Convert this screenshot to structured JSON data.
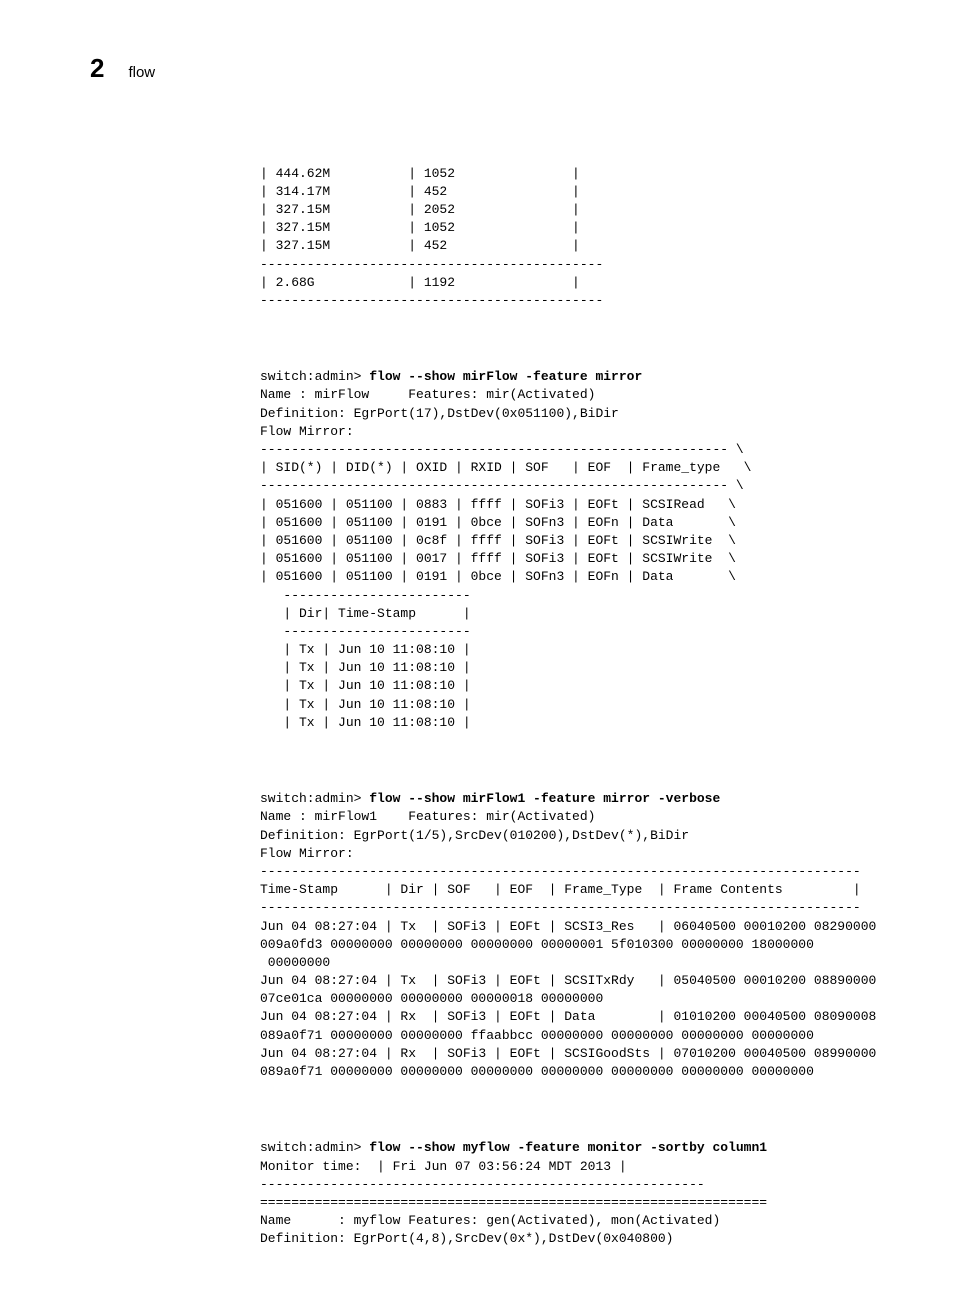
{
  "header": {
    "page_number": "2",
    "title": "flow"
  },
  "block1": {
    "lines": [
      "| 444.62M          | 1052               |",
      "| 314.17M          | 452                |",
      "| 327.15M          | 2052               |",
      "| 327.15M          | 1052               |",
      "| 327.15M          | 452                |",
      "--------------------------------------------",
      "| 2.68G            | 1192               |",
      "--------------------------------------------"
    ]
  },
  "block2": {
    "prompt": "switch:admin> ",
    "cmd": "flow --show mirFlow -feature mirror",
    "lines": [
      "Name : mirFlow     Features: mir(Activated)",
      "Definition: EgrPort(17),DstDev(0x051100),BiDir",
      "Flow Mirror:",
      "------------------------------------------------------------ \\",
      "| SID(*) | DID(*) | OXID | RXID | SOF   | EOF  | Frame_type   \\",
      "------------------------------------------------------------ \\",
      "| 051600 | 051100 | 0883 | ffff | SOFi3 | EOFt | SCSIRead   \\",
      "| 051600 | 051100 | 0191 | 0bce | SOFn3 | EOFn | Data       \\",
      "| 051600 | 051100 | 0c8f | ffff | SOFi3 | EOFt | SCSIWrite  \\",
      "| 051600 | 051100 | 0017 | ffff | SOFi3 | EOFt | SCSIWrite  \\",
      "| 051600 | 051100 | 0191 | 0bce | SOFn3 | EOFn | Data       \\",
      "   ------------------------",
      "   | Dir| Time-Stamp      |",
      "   ------------------------",
      "   | Tx | Jun 10 11:08:10 |",
      "   | Tx | Jun 10 11:08:10 |",
      "   | Tx | Jun 10 11:08:10 |",
      "   | Tx | Jun 10 11:08:10 |",
      "   | Tx | Jun 10 11:08:10 |"
    ]
  },
  "block3": {
    "prompt": "switch:admin> ",
    "cmd": "flow --show mirFlow1 -feature mirror -verbose",
    "lines": [
      "Name : mirFlow1    Features: mir(Activated)",
      "Definition: EgrPort(1/5),SrcDev(010200),DstDev(*),BiDir",
      "Flow Mirror:",
      "-----------------------------------------------------------------------------",
      "Time-Stamp      | Dir | SOF   | EOF  | Frame_Type  | Frame Contents         |",
      "-----------------------------------------------------------------------------",
      "Jun 04 08:27:04 | Tx  | SOFi3 | EOFt | SCSI3_Res   | 06040500 00010200 08290000",
      "009a0fd3 00000000 00000000 00000000 00000001 5f010300 00000000 18000000",
      " 00000000",
      "Jun 04 08:27:04 | Tx  | SOFi3 | EOFt | SCSITxRdy   | 05040500 00010200 08890000",
      "07ce01ca 00000000 00000000 00000018 00000000",
      "Jun 04 08:27:04 | Rx  | SOFi3 | EOFt | Data        | 01010200 00040500 08090008",
      "089a0f71 00000000 00000000 ffaabbcc 00000000 00000000 00000000 00000000",
      "Jun 04 08:27:04 | Rx  | SOFi3 | EOFt | SCSIGoodSts | 07010200 00040500 08990000",
      "089a0f71 00000000 00000000 00000000 00000000 00000000 00000000 00000000"
    ]
  },
  "block4": {
    "prompt": "switch:admin> ",
    "cmd": "flow --show myflow -feature monitor -sortby column1",
    "lines": [
      "Monitor time:  | Fri Jun 07 03:56:24 MDT 2013 |",
      "---------------------------------------------------------",
      "=================================================================",
      "Name      : myflow Features: gen(Activated), mon(Activated)",
      "Definition: EgrPort(4,8),SrcDev(0x*),DstDev(0x040800)"
    ]
  }
}
